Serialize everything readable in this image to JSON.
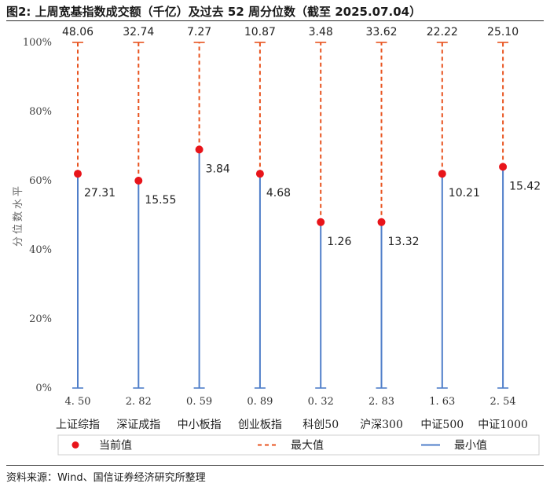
{
  "title": "图2: 上周宽基指数成交额（千亿）及过去 52 周分位数（截至 2025.07.04）",
  "source": "资料来源：Wind、国信证券经济研究所整理",
  "chart_data": {
    "type": "range",
    "ylabel": "分位数水平",
    "ylim": [
      0,
      100
    ],
    "y_ticks": [
      "0%",
      "20%",
      "40%",
      "60%",
      "80%",
      "100%"
    ],
    "categories": [
      "上证综指",
      "深证成指",
      "中小板指",
      "创业板指",
      "科创50",
      "沪深300",
      "中证500",
      "中证1000"
    ],
    "max_labels": [
      "48.06",
      "32.74",
      "7.27",
      "10.87",
      "3.48",
      "33.62",
      "22.22",
      "25.10"
    ],
    "current_labels": [
      "27.31",
      "15.55",
      "3.84",
      "4.68",
      "1.26",
      "13.32",
      "10.21",
      "15.42"
    ],
    "min_labels": [
      "4. 50",
      "2. 82",
      "0. 59",
      "0. 89",
      "0. 32",
      "2. 83",
      "1. 63",
      "2. 54"
    ],
    "current_percentile": [
      62,
      60,
      69,
      62,
      48,
      48,
      62,
      64
    ],
    "max_percentile": [
      100,
      100,
      100,
      100,
      100,
      100,
      100,
      100
    ],
    "min_percentile": [
      0,
      0,
      0,
      0,
      0,
      0,
      0,
      0
    ],
    "legend": [
      {
        "name": "当前值",
        "kind": "dot",
        "color": "#e8141a"
      },
      {
        "name": "最大值",
        "kind": "dash",
        "color": "#e8531f"
      },
      {
        "name": "最小值",
        "kind": "line",
        "color": "#4f7ec9"
      }
    ],
    "colors": {
      "current": "#e8141a",
      "upper": "#e8531f",
      "lower": "#4f7ec9"
    }
  }
}
